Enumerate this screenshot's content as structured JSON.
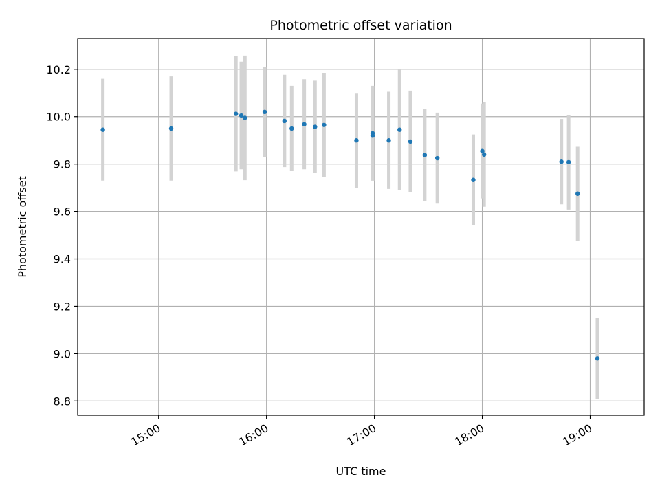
{
  "chart_data": {
    "type": "scatter",
    "title": "Photometric offset variation",
    "xlabel": "UTC time",
    "ylabel": "Photometric offset",
    "grid": true,
    "xlim": [
      "14:15",
      "19:30"
    ],
    "ylim": [
      8.74,
      10.33
    ],
    "x_ticks": [
      "15:00",
      "16:00",
      "17:00",
      "18:00",
      "19:00"
    ],
    "y_ticks": [
      8.8,
      9.0,
      9.2,
      9.4,
      9.6,
      9.8,
      10.0,
      10.2
    ],
    "y_tick_labels": [
      "8.8",
      "9.0",
      "9.2",
      "9.4",
      "9.6",
      "9.8",
      "10.0",
      "10.2"
    ],
    "point_color": "#1f77b4",
    "errorbar_color": "#d3d3d3",
    "points": [
      {
        "x": "14:29",
        "y": 9.945,
        "err": 0.215
      },
      {
        "x": "15:07",
        "y": 9.95,
        "err": 0.22
      },
      {
        "x": "15:43",
        "y": 10.012,
        "err": 0.243
      },
      {
        "x": "15:46",
        "y": 10.005,
        "err": 0.227
      },
      {
        "x": "15:48",
        "y": 9.995,
        "err": 0.263
      },
      {
        "x": "15:59",
        "y": 10.02,
        "err": 0.19
      },
      {
        "x": "16:10",
        "y": 9.982,
        "err": 0.195
      },
      {
        "x": "16:14",
        "y": 9.95,
        "err": 0.18
      },
      {
        "x": "16:21",
        "y": 9.968,
        "err": 0.19
      },
      {
        "x": "16:27",
        "y": 9.957,
        "err": 0.195
      },
      {
        "x": "16:32",
        "y": 9.965,
        "err": 0.22
      },
      {
        "x": "16:50",
        "y": 9.9,
        "err": 0.2
      },
      {
        "x": "16:59",
        "y": 9.93,
        "err": 0.2
      },
      {
        "x": "16:59",
        "y": 9.92,
        "err": 0.19
      },
      {
        "x": "17:08",
        "y": 9.9,
        "err": 0.205
      },
      {
        "x": "17:14",
        "y": 9.945,
        "err": 0.255
      },
      {
        "x": "17:20",
        "y": 9.895,
        "err": 0.215
      },
      {
        "x": "17:28",
        "y": 9.838,
        "err": 0.193
      },
      {
        "x": "17:35",
        "y": 9.825,
        "err": 0.192
      },
      {
        "x": "17:55",
        "y": 9.733,
        "err": 0.192
      },
      {
        "x": "18:00",
        "y": 9.855,
        "err": 0.2
      },
      {
        "x": "18:01",
        "y": 9.84,
        "err": 0.22
      },
      {
        "x": "18:44",
        "y": 9.81,
        "err": 0.18
      },
      {
        "x": "18:48",
        "y": 9.808,
        "err": 0.2
      },
      {
        "x": "18:53",
        "y": 9.675,
        "err": 0.198
      },
      {
        "x": "19:04",
        "y": 8.98,
        "err": 0.172
      }
    ]
  }
}
